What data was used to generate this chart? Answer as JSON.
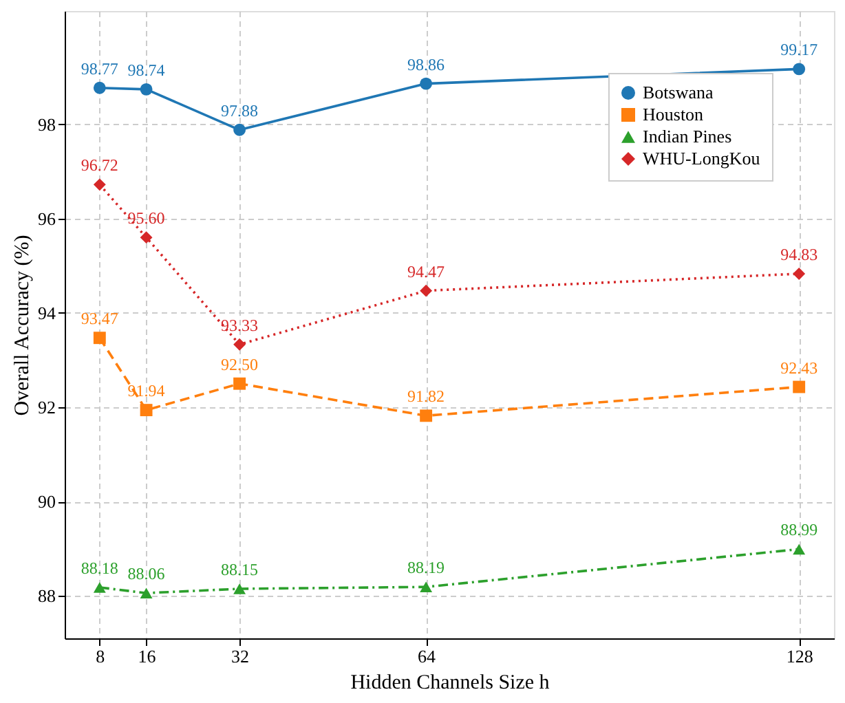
{
  "chart_data": {
    "type": "line",
    "xlabel": "Hidden Channels Size h",
    "ylabel": "Overall Accuracy (%)",
    "x": [
      8,
      16,
      32,
      64,
      128
    ],
    "series": [
      {
        "name": "Botswana",
        "color": "#1f77b4",
        "marker": "circle",
        "line_style": "solid",
        "values": [
          98.77,
          98.74,
          97.88,
          98.86,
          99.17
        ]
      },
      {
        "name": "Houston",
        "color": "#ff7f0e",
        "marker": "square",
        "line_style": "dashed",
        "values": [
          93.47,
          91.94,
          92.5,
          91.82,
          92.43
        ]
      },
      {
        "name": "Indian Pines",
        "color": "#2ca02c",
        "marker": "triangle",
        "line_style": "dashdot",
        "values": [
          88.18,
          88.06,
          88.15,
          88.19,
          88.99
        ]
      },
      {
        "name": "WHU-LongKou",
        "color": "#d62728",
        "marker": "diamond",
        "line_style": "dotted",
        "values": [
          96.72,
          95.6,
          93.33,
          94.47,
          94.83
        ]
      }
    ],
    "value_labels": [
      [
        "98.77",
        "98.74",
        "97.88",
        "98.86",
        "99.17"
      ],
      [
        "93.47",
        "91.94",
        "92.50",
        "91.82",
        "92.43"
      ],
      [
        "88.18",
        "88.06",
        "88.15",
        "88.19",
        "88.99"
      ],
      [
        "96.72",
        "95.60",
        "93.33",
        "94.47",
        "94.83"
      ]
    ],
    "xlim": [
      2,
      134
    ],
    "xticks": [
      8,
      16,
      32,
      64,
      128
    ],
    "ylim": [
      87.1,
      100.4
    ],
    "yticks": [
      88,
      90,
      92,
      94,
      96,
      98
    ],
    "grid": true,
    "legend": "top right"
  }
}
